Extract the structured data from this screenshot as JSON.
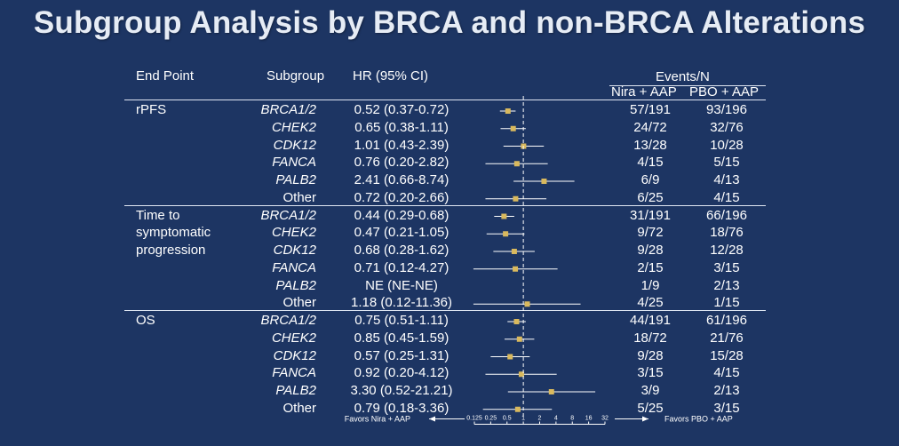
{
  "title": "Subgroup Analysis by BRCA and non-BRCA Alterations",
  "headers": {
    "endpoint": "End Point",
    "subgroup": "Subgroup",
    "hr": "HR (95% CI)",
    "events": "Events/N",
    "nira": "Nira + AAP",
    "pbo": "PBO + AAP"
  },
  "chart_data": {
    "type": "forest",
    "x_scale": "log2",
    "x_ticks": [
      "0.125",
      "0.25",
      "0.5",
      "1",
      "2",
      "4",
      "8",
      "16",
      "32"
    ],
    "x_tick_values": [
      0.125,
      0.25,
      0.5,
      1,
      2,
      4,
      8,
      16,
      32
    ],
    "reference_line": 1,
    "favors_left": "Favors Nira + AAP",
    "favors_right": "Favors PBO + AAP",
    "colors": {
      "point": "#d9b95e",
      "ci": "#ffffff",
      "background": "#1d3563"
    },
    "groups": [
      {
        "endpoint": [
          "rPFS"
        ],
        "rows": [
          {
            "subgroup": "BRCA1/2",
            "italic": true,
            "hr_text": "0.52 (0.37-0.72)",
            "hr": 0.52,
            "lo": 0.37,
            "hi": 0.72,
            "nira": "57/191",
            "pbo": "93/196"
          },
          {
            "subgroup": "CHEK2",
            "italic": true,
            "hr_text": "0.65 (0.38-1.11)",
            "hr": 0.65,
            "lo": 0.38,
            "hi": 1.11,
            "nira": "24/72",
            "pbo": "32/76"
          },
          {
            "subgroup": "CDK12",
            "italic": true,
            "hr_text": "1.01 (0.43-2.39)",
            "hr": 1.01,
            "lo": 0.43,
            "hi": 2.39,
            "nira": "13/28",
            "pbo": "10/28"
          },
          {
            "subgroup": "FANCA",
            "italic": true,
            "hr_text": "0.76 (0.20-2.82)",
            "hr": 0.76,
            "lo": 0.2,
            "hi": 2.82,
            "nira": "4/15",
            "pbo": "5/15"
          },
          {
            "subgroup": "PALB2",
            "italic": true,
            "hr_text": "2.41 (0.66-8.74)",
            "hr": 2.41,
            "lo": 0.66,
            "hi": 8.74,
            "nira": "6/9",
            "pbo": "4/13"
          },
          {
            "subgroup": "Other",
            "italic": false,
            "hr_text": "0.72 (0.20-2.66)",
            "hr": 0.72,
            "lo": 0.2,
            "hi": 2.66,
            "nira": "6/25",
            "pbo": "4/15"
          }
        ]
      },
      {
        "endpoint": [
          "Time to",
          "symptomatic",
          "progression"
        ],
        "rows": [
          {
            "subgroup": "BRCA1/2",
            "italic": true,
            "hr_text": "0.44 (0.29-0.68)",
            "hr": 0.44,
            "lo": 0.29,
            "hi": 0.68,
            "nira": "31/191",
            "pbo": "66/196"
          },
          {
            "subgroup": "CHEK2",
            "italic": true,
            "hr_text": "0.47 (0.21-1.05)",
            "hr": 0.47,
            "lo": 0.21,
            "hi": 1.05,
            "nira": "9/72",
            "pbo": "18/76"
          },
          {
            "subgroup": "CDK12",
            "italic": true,
            "hr_text": "0.68 (0.28-1.62)",
            "hr": 0.68,
            "lo": 0.28,
            "hi": 1.62,
            "nira": "9/28",
            "pbo": "12/28"
          },
          {
            "subgroup": "FANCA",
            "italic": true,
            "hr_text": "0.71 (0.12-4.27)",
            "hr": 0.71,
            "lo": 0.12,
            "hi": 4.27,
            "nira": "2/15",
            "pbo": "3/15"
          },
          {
            "subgroup": "PALB2",
            "italic": true,
            "hr_text": "NE (NE-NE)",
            "hr": null,
            "lo": null,
            "hi": null,
            "nira": "1/9",
            "pbo": "2/13"
          },
          {
            "subgroup": "Other",
            "italic": false,
            "hr_text": "1.18 (0.12-11.36)",
            "hr": 1.18,
            "lo": 0.12,
            "hi": 11.36,
            "nira": "4/25",
            "pbo": "1/15"
          }
        ]
      },
      {
        "endpoint": [
          "OS"
        ],
        "rows": [
          {
            "subgroup": "BRCA1/2",
            "italic": true,
            "hr_text": "0.75 (0.51-1.11)",
            "hr": 0.75,
            "lo": 0.51,
            "hi": 1.11,
            "nira": "44/191",
            "pbo": "61/196"
          },
          {
            "subgroup": "CHEK2",
            "italic": true,
            "hr_text": "0.85 (0.45-1.59)",
            "hr": 0.85,
            "lo": 0.45,
            "hi": 1.59,
            "nira": "18/72",
            "pbo": "21/76"
          },
          {
            "subgroup": "CDK12",
            "italic": true,
            "hr_text": "0.57 (0.25-1.31)",
            "hr": 0.57,
            "lo": 0.25,
            "hi": 1.31,
            "nira": "9/28",
            "pbo": "15/28"
          },
          {
            "subgroup": "FANCA",
            "italic": true,
            "hr_text": "0.92 (0.20-4.12)",
            "hr": 0.92,
            "lo": 0.2,
            "hi": 4.12,
            "nira": "3/15",
            "pbo": "4/15"
          },
          {
            "subgroup": "PALB2",
            "italic": true,
            "hr_text": "3.30 (0.52-21.21)",
            "hr": 3.3,
            "lo": 0.52,
            "hi": 21.21,
            "nira": "3/9",
            "pbo": "2/13"
          },
          {
            "subgroup": "Other",
            "italic": false,
            "hr_text": "0.79 (0.18-3.36)",
            "hr": 0.79,
            "lo": 0.18,
            "hi": 3.36,
            "nira": "5/25",
            "pbo": "3/15"
          }
        ]
      }
    ]
  }
}
